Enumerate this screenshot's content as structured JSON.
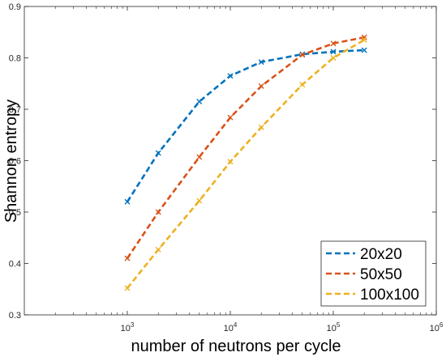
{
  "chart_data": {
    "type": "line",
    "title": "",
    "xlabel": "number of neutrons per cycle",
    "ylabel": "Shannon entropy",
    "xscale": "log",
    "xlim": [
      100,
      1000000
    ],
    "ylim": [
      0.3,
      0.9
    ],
    "x_ticks": [
      {
        "value": 1000,
        "mantissa": "10",
        "exp": "3"
      },
      {
        "value": 10000,
        "mantissa": "10",
        "exp": "4"
      },
      {
        "value": 100000,
        "mantissa": "10",
        "exp": "5"
      },
      {
        "value": 1000000,
        "mantissa": "10",
        "exp": "6"
      }
    ],
    "y_ticks": [
      {
        "value": 0.3,
        "label": "0.3"
      },
      {
        "value": 0.4,
        "label": "0.4"
      },
      {
        "value": 0.5,
        "label": "0.5"
      },
      {
        "value": 0.6,
        "label": "0.6"
      },
      {
        "value": 0.7,
        "label": "0.7"
      },
      {
        "value": 0.8,
        "label": "0.8"
      },
      {
        "value": 0.9,
        "label": "0.9"
      }
    ],
    "grid": false,
    "legend_position": "bottom-right",
    "series": [
      {
        "name": "20x20",
        "color": "#0072BD",
        "x": [
          1000,
          2000,
          5000,
          10000,
          20000,
          50000,
          100000,
          200000
        ],
        "y": [
          0.52,
          0.615,
          0.715,
          0.765,
          0.792,
          0.807,
          0.812,
          0.815
        ]
      },
      {
        "name": "50x50",
        "color": "#D95319",
        "x": [
          1000,
          2000,
          5000,
          10000,
          20000,
          50000,
          100000,
          200000
        ],
        "y": [
          0.41,
          0.5,
          0.607,
          0.684,
          0.745,
          0.806,
          0.828,
          0.84
        ]
      },
      {
        "name": "100x100",
        "color": "#EDB120",
        "x": [
          1000,
          2000,
          5000,
          10000,
          20000,
          50000,
          100000,
          200000
        ],
        "y": [
          0.352,
          0.427,
          0.522,
          0.598,
          0.665,
          0.748,
          0.8,
          0.835
        ]
      }
    ]
  }
}
